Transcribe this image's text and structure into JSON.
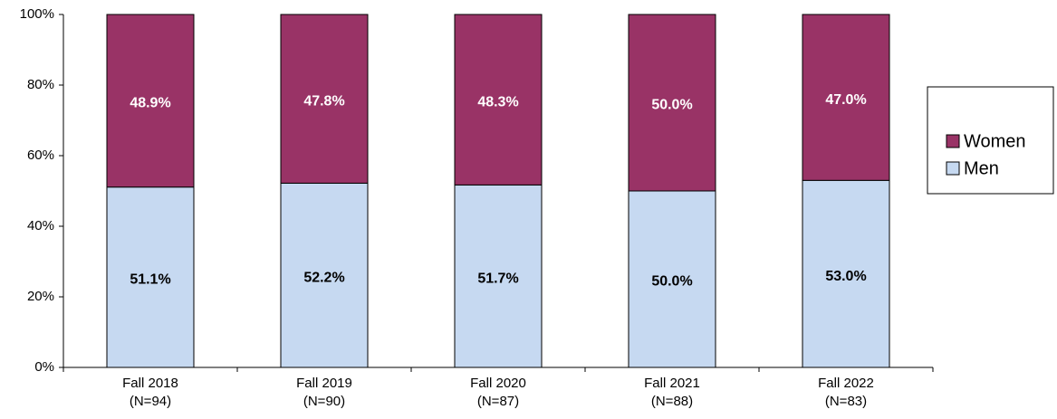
{
  "chart_data": {
    "type": "stacked_bar",
    "categories": [
      [
        "Fall 2018",
        "(N=94)"
      ],
      [
        "Fall 2019",
        "(N=90)"
      ],
      [
        "Fall 2020",
        "(N=87)"
      ],
      [
        "Fall 2021",
        "(N=88)"
      ],
      [
        "Fall 2022",
        "(N=83)"
      ]
    ],
    "series": [
      {
        "name": "Men",
        "color": "#c6d9f1",
        "label_color": "#000000",
        "values": [
          51.1,
          52.2,
          51.7,
          50.0,
          53.0
        ],
        "value_labels": [
          "51.1%",
          "52.2%",
          "51.7%",
          "50.0%",
          "53.0%"
        ]
      },
      {
        "name": "Women",
        "color": "#993366",
        "label_color": "#ffffff",
        "values": [
          48.9,
          47.8,
          48.3,
          50.0,
          47.0
        ],
        "value_labels": [
          "48.9%",
          "47.8%",
          "48.3%",
          "50.0%",
          "47.0%"
        ]
      }
    ],
    "ylim": [
      0,
      100
    ],
    "yticks": [
      {
        "value": 0,
        "label": "0%"
      },
      {
        "value": 20,
        "label": "20%"
      },
      {
        "value": 40,
        "label": "40%"
      },
      {
        "value": 60,
        "label": "60%"
      },
      {
        "value": 80,
        "label": "80%"
      },
      {
        "value": 100,
        "label": "100%"
      }
    ],
    "legend": "right"
  }
}
